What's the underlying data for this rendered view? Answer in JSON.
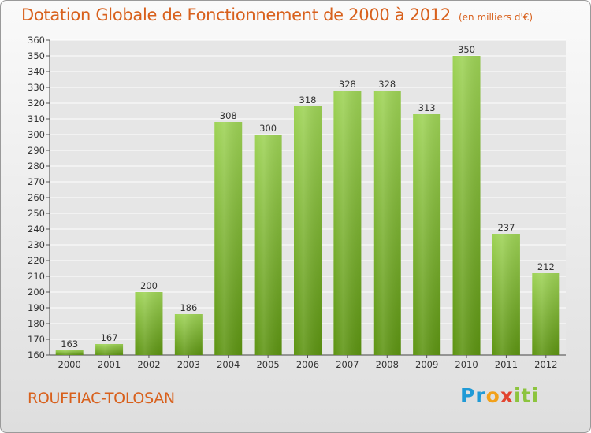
{
  "header": {
    "title": "Dotation Globale de Fonctionnement de 2000 à 2012",
    "unit": "(en milliers d'€)"
  },
  "footer": {
    "commune": "ROUFFIAC-TOLOSAN",
    "logo": "Proxiti"
  },
  "colors": {
    "title": "#d8601c",
    "bar_light": "#9ed356",
    "bar_dark": "#5d9412",
    "grid": "#ffffff",
    "plot_bg": "#e6e6e6"
  },
  "chart_data": {
    "type": "bar",
    "categories": [
      "2000",
      "2001",
      "2002",
      "2003",
      "2004",
      "2005",
      "2006",
      "2007",
      "2008",
      "2009",
      "2010",
      "2011",
      "2012"
    ],
    "values": [
      163,
      167,
      200,
      186,
      308,
      300,
      318,
      328,
      328,
      313,
      350,
      237,
      212
    ],
    "title": "Dotation Globale de Fonctionnement de 2000 à 2012",
    "ylabel": "",
    "xlabel": "",
    "ylim": [
      160,
      360
    ],
    "ytick_step": 10,
    "grid": true,
    "data_labels": true
  }
}
